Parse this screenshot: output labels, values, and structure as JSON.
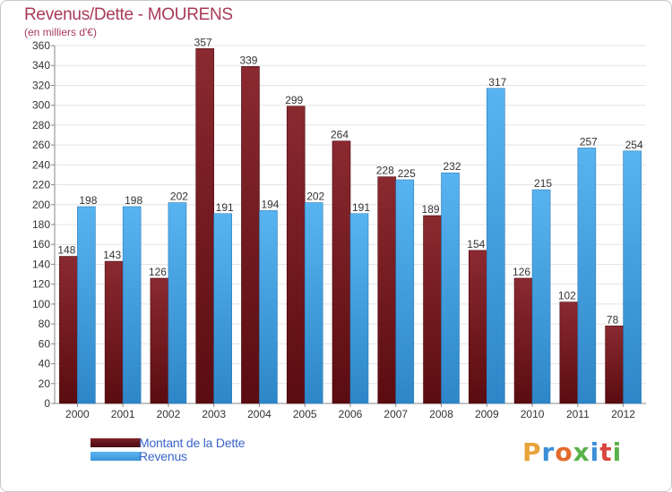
{
  "header": {
    "title": "Revenus/Dette - MOURENS",
    "subtitle": "(en milliers d'€)"
  },
  "legend": {
    "debt_label": "Montant de la Dette",
    "revenue_label": "Revenus"
  },
  "brand": {
    "logo_text": "Proxiti",
    "letter_colors": [
      "#e8a33a",
      "#3d8fd8",
      "#e36b2c",
      "#5ab24a",
      "#3d8fd8",
      "#d8453d",
      "#5ab24a"
    ]
  },
  "colors": {
    "debt": "#6e1a1e",
    "revenue": "#4aa8e8",
    "title": "#a83a58"
  },
  "chart_data": {
    "type": "bar",
    "title": "Revenus/Dette - MOURENS",
    "ylabel": "(en milliers d'€)",
    "xlabel": "",
    "categories": [
      "2000",
      "2001",
      "2002",
      "2003",
      "2004",
      "2005",
      "2006",
      "2007",
      "2008",
      "2009",
      "2010",
      "2011",
      "2012"
    ],
    "series": [
      {
        "name": "Montant de la Dette",
        "values": [
          148,
          143,
          126,
          357,
          339,
          299,
          264,
          228,
          189,
          154,
          126,
          102,
          78
        ]
      },
      {
        "name": "Revenus",
        "values": [
          198,
          198,
          202,
          191,
          194,
          202,
          191,
          225,
          232,
          317,
          215,
          257,
          254
        ]
      }
    ],
    "ylim": [
      0,
      360
    ],
    "ytick_step": 20,
    "grid": true,
    "legend_position": "bottom-left"
  }
}
